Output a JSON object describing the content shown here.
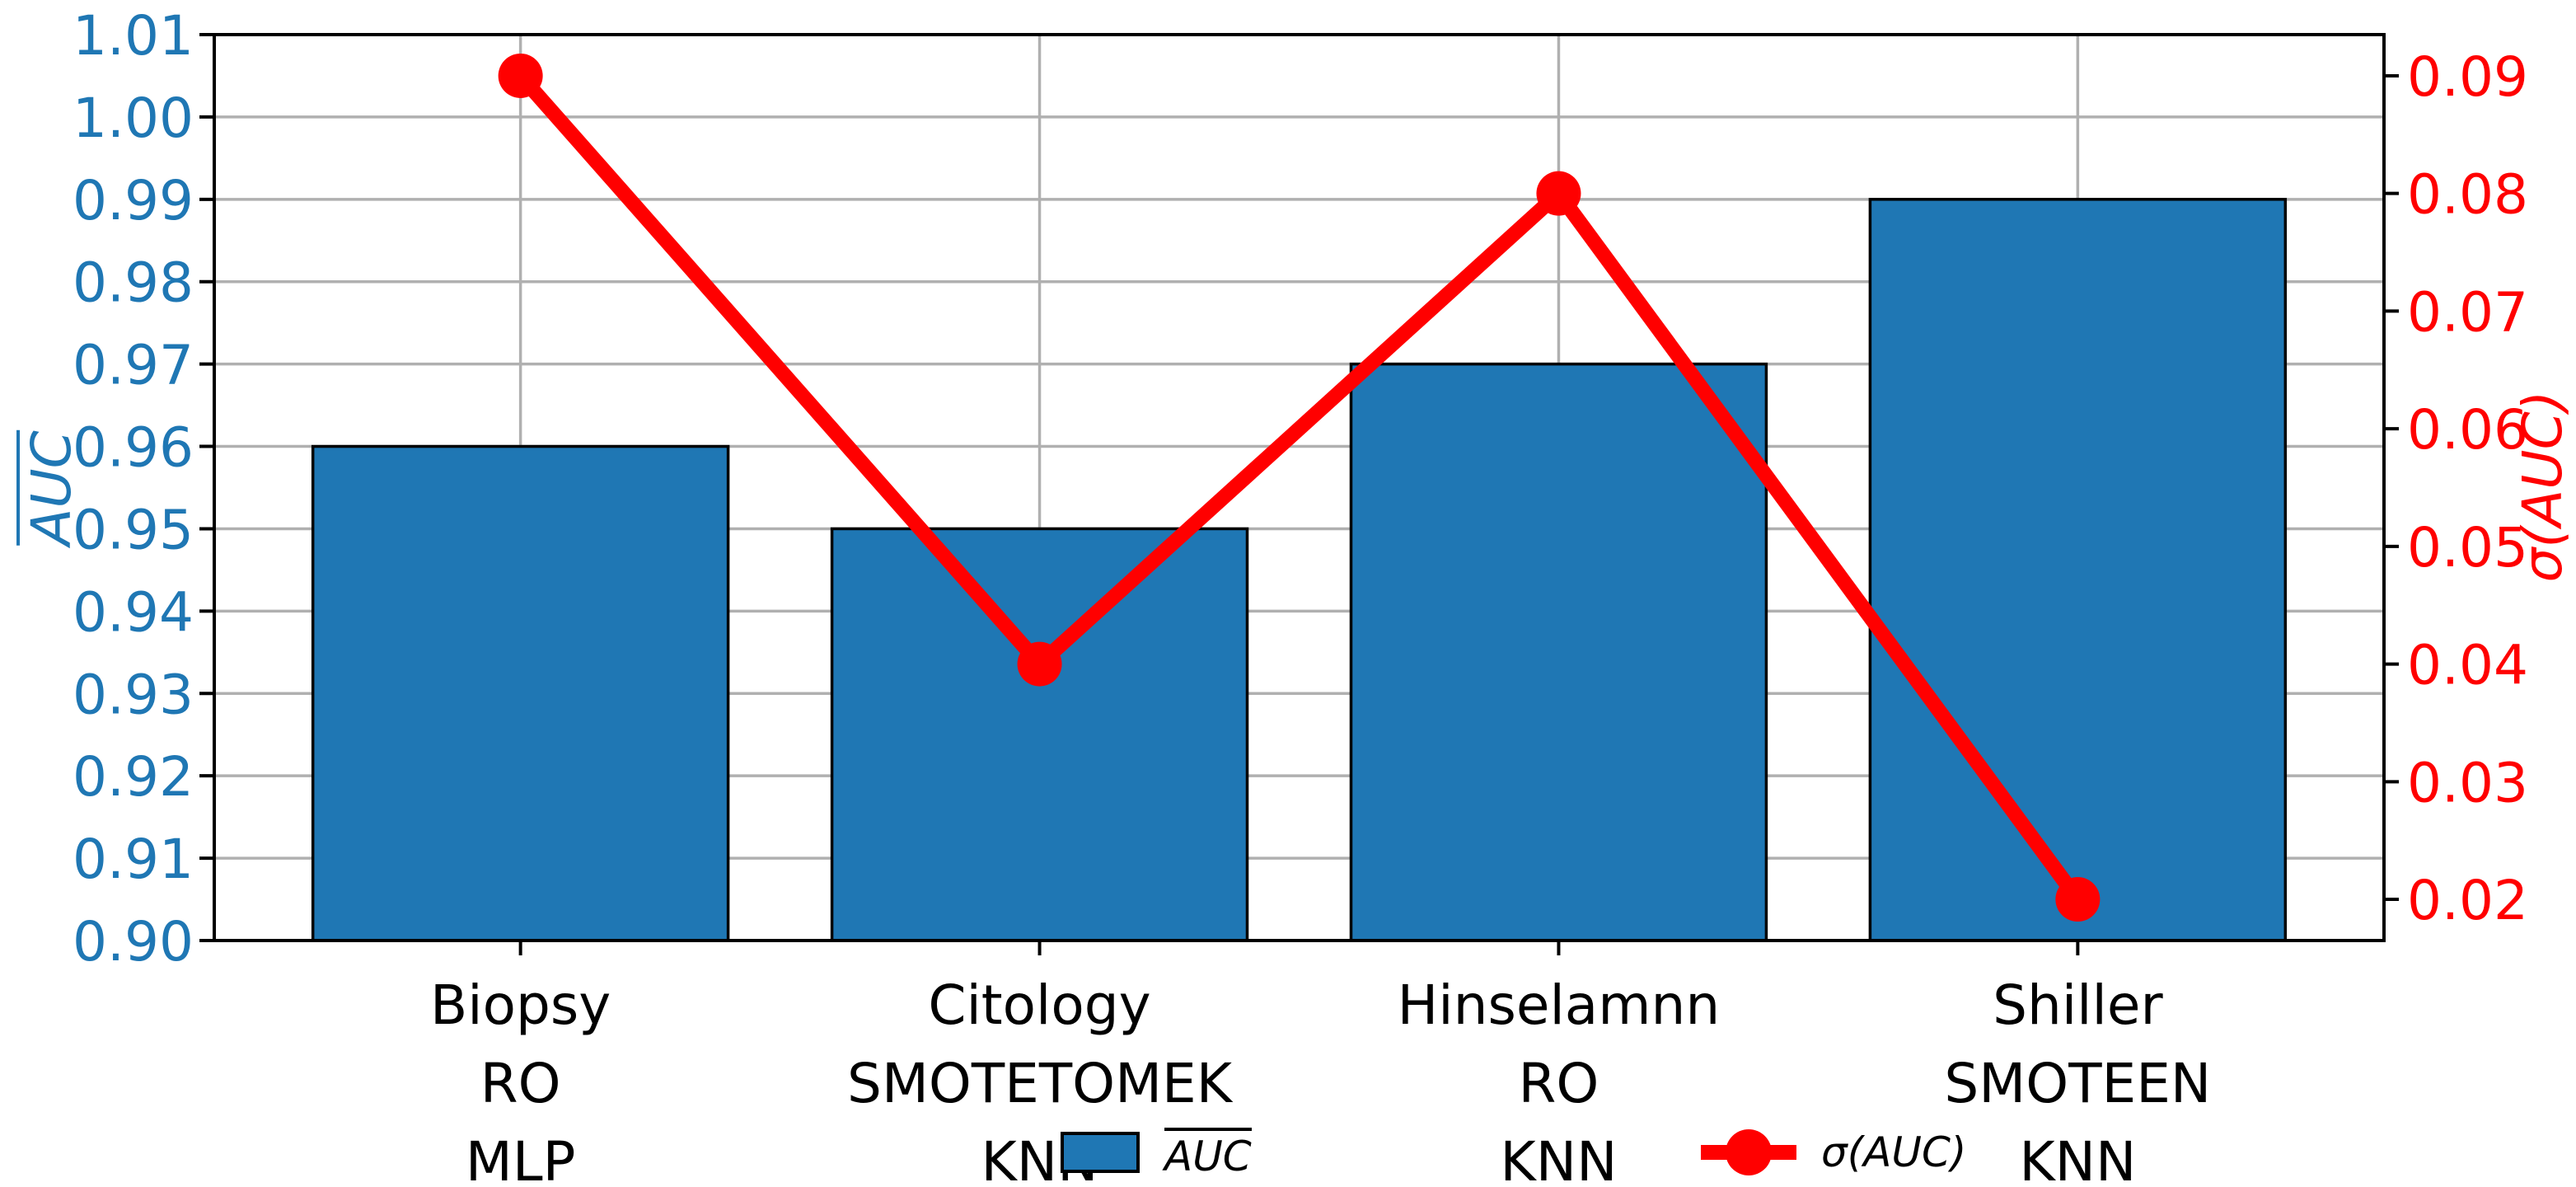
{
  "chart_data": {
    "type": "bar+line",
    "title": "",
    "xlabel": "",
    "categories": [
      [
        "Biopsy",
        "RO",
        "MLP"
      ],
      [
        "Citology",
        "SMOTETOMEK",
        "KNN"
      ],
      [
        "Hinselamnn",
        "RO",
        "KNN"
      ],
      [
        "Shiller",
        "SMOTEEN",
        "KNN"
      ]
    ],
    "series": [
      {
        "name": "AUC",
        "overline": true,
        "type": "bar",
        "axis": "left",
        "color": "#1f77b4",
        "edge_color": "#000000",
        "values": [
          0.96,
          0.95,
          0.97,
          0.99
        ]
      },
      {
        "name": "σ(AUC)",
        "type": "line",
        "axis": "right",
        "color": "#ff0000",
        "marker": "circle",
        "values": [
          0.09,
          0.04,
          0.08,
          0.02
        ]
      }
    ],
    "left_axis": {
      "label": "AUC",
      "overline": true,
      "color": "#1f77b4",
      "ticks": [
        0.9,
        0.91,
        0.92,
        0.93,
        0.94,
        0.95,
        0.96,
        0.97,
        0.98,
        0.99,
        1.0,
        1.01
      ],
      "ylim": [
        0.9,
        1.01
      ]
    },
    "right_axis": {
      "label": "σ(AUC)",
      "color": "#ff0000",
      "ticks": [
        0.02,
        0.03,
        0.04,
        0.05,
        0.06,
        0.07,
        0.08,
        0.09
      ],
      "ylim": [
        0.0165,
        0.0935
      ]
    },
    "grid": {
      "show": true,
      "axes": "both",
      "color": "#b0b0b0"
    },
    "legend": {
      "position": "bottom-center",
      "items": [
        {
          "label": "AUC",
          "overline": true,
          "handle": "bar-swatch",
          "color": "#1f77b4"
        },
        {
          "label": "σ(AUC)",
          "handle": "line-marker",
          "color": "#ff0000"
        }
      ]
    }
  }
}
